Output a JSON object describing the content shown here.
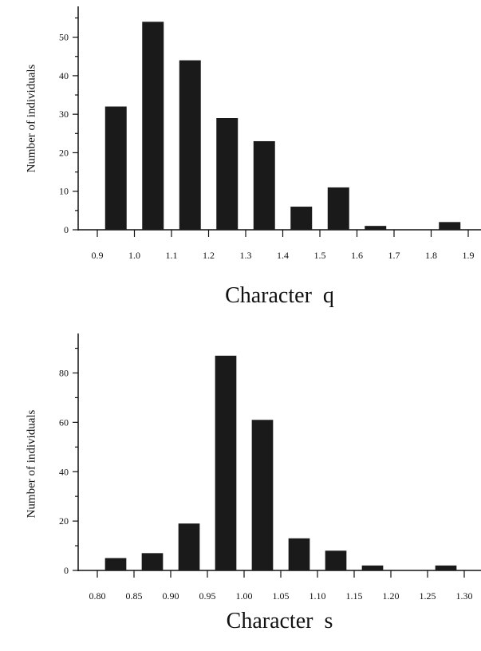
{
  "chart_data": [
    {
      "type": "bar",
      "title": "",
      "xlabel": "Character  q",
      "ylabel": "Number of individuals",
      "x_ticks": [
        "0.9",
        "1.0",
        "1.1",
        "1.2",
        "1.3",
        "1.4",
        "1.5",
        "1.6",
        "1.7",
        "1.8",
        "1.9"
      ],
      "y_ticks": [
        "0",
        "10",
        "20",
        "30",
        "40",
        "50"
      ],
      "ylim": [
        0,
        58
      ],
      "bins": [
        {
          "range": [
            0.9,
            1.0
          ],
          "value": 32
        },
        {
          "range": [
            1.0,
            1.1
          ],
          "value": 54
        },
        {
          "range": [
            1.1,
            1.2
          ],
          "value": 44
        },
        {
          "range": [
            1.2,
            1.3
          ],
          "value": 29
        },
        {
          "range": [
            1.3,
            1.4
          ],
          "value": 23
        },
        {
          "range": [
            1.4,
            1.5
          ],
          "value": 6
        },
        {
          "range": [
            1.5,
            1.6
          ],
          "value": 11
        },
        {
          "range": [
            1.6,
            1.7
          ],
          "value": 1
        },
        {
          "range": [
            1.7,
            1.8
          ],
          "value": 0
        },
        {
          "range": [
            1.8,
            1.9
          ],
          "value": 2
        }
      ],
      "bar_color": "#1a1a1a",
      "grid": false
    },
    {
      "type": "bar",
      "title": "",
      "xlabel": "Character  s",
      "ylabel": "Number of individuals",
      "x_ticks": [
        "0.80",
        "0.85",
        "0.90",
        "0.95",
        "1.00",
        "1.05",
        "1.10",
        "1.15",
        "1.20",
        "1.25",
        "1.30"
      ],
      "y_ticks": [
        "0",
        "20",
        "40",
        "60",
        "80"
      ],
      "ylim": [
        0,
        96
      ],
      "bins": [
        {
          "range": [
            0.8,
            0.85
          ],
          "value": 5
        },
        {
          "range": [
            0.85,
            0.9
          ],
          "value": 7
        },
        {
          "range": [
            0.9,
            0.95
          ],
          "value": 19
        },
        {
          "range": [
            0.95,
            1.0
          ],
          "value": 87
        },
        {
          "range": [
            1.0,
            1.05
          ],
          "value": 61
        },
        {
          "range": [
            1.05,
            1.1
          ],
          "value": 13
        },
        {
          "range": [
            1.1,
            1.15
          ],
          "value": 8
        },
        {
          "range": [
            1.15,
            1.2
          ],
          "value": 2
        },
        {
          "range": [
            1.2,
            1.25
          ],
          "value": 0
        },
        {
          "range": [
            1.25,
            1.3
          ],
          "value": 2
        }
      ],
      "bar_color": "#1a1a1a",
      "grid": false
    }
  ]
}
